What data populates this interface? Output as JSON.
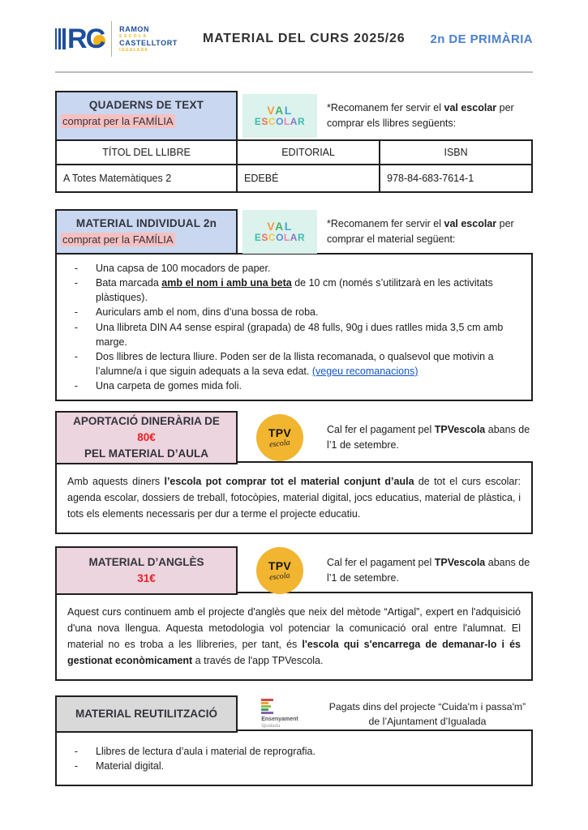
{
  "colors": {
    "accent_blue": "#4a7fd0",
    "logo_blue": "#1e4e9c",
    "logo_gold": "#f2b21a",
    "box_blue": "#c9d7f1",
    "box_pink": "#ecd5de",
    "box_gray": "#d9d9d9",
    "highlight_pink": "#f6c0c0",
    "price_red": "#ee1d23",
    "link_blue": "#1155cc",
    "tpv_yellow": "#f2b530",
    "val_bg": "#dcf2ec"
  },
  "header": {
    "logo": {
      "r": "R",
      "c": "C",
      "school_line1": "RAMON",
      "school_line2": "ESCOLA",
      "school_line3": "CASTELLTORT",
      "school_line4": "IGUALADA"
    },
    "title": "MATERIAL DEL CURS 2025/26",
    "grade": "2n DE PRIMÀRIA"
  },
  "val_logo": {
    "line1": [
      {
        "ch": "V",
        "c": "#f59b3d"
      },
      {
        "ch": "A",
        "c": "#4fb069"
      },
      {
        "ch": "L",
        "c": "#4aa3d8"
      }
    ],
    "line2": [
      {
        "ch": "E",
        "c": "#3cbcae"
      },
      {
        "ch": "S",
        "c": "#f07055"
      },
      {
        "ch": "C",
        "c": "#f3c63f"
      },
      {
        "ch": "O",
        "c": "#5a8fd8"
      },
      {
        "ch": "L",
        "c": "#ef7fb2"
      },
      {
        "ch": "A",
        "c": "#8f74c9"
      },
      {
        "ch": "R",
        "c": "#3cbcae"
      }
    ]
  },
  "tpv_logo": {
    "top": "TPV",
    "bottom": "escola"
  },
  "ensenyament_logo": {
    "name": "Ensenyament",
    "city": "Igualada",
    "bar_colors": [
      "#d94a4a",
      "#f0a132",
      "#8fbf4d",
      "#3f9e62",
      "#8a5fb0"
    ]
  },
  "section_quaderns": {
    "title": "QUADERNS DE TEXT",
    "subtitle": "comprat per la FAMÍLIA",
    "note": {
      "pre": "*Recomanem fer servir el ",
      "strong": "val escolar",
      "post": " per comprar els llibres següents:"
    },
    "table": {
      "headers": [
        "TÍTOL DEL LLIBRE",
        "EDITORIAL",
        "ISBN"
      ],
      "row": [
        "A Totes Matemàtiques 2",
        "EDEBÉ",
        "978-84-683-7614-1"
      ]
    }
  },
  "section_individual": {
    "title": "MATERIAL INDIVIDUAL 2n",
    "subtitle": "comprat per la FAMÍLIA",
    "note": {
      "pre": "*Recomanem fer servir el ",
      "strong": "val escolar",
      "post": " per comprar el material següent:"
    },
    "items": [
      {
        "pre": "Una capsa de 100 mocadors de paper.",
        "strong": "",
        "post": "",
        "link": ""
      },
      {
        "pre": "Bata marcada ",
        "strong": "amb el nom i amb una beta",
        "post": " de 10 cm (només s’utilitzarà en les activitats plàstiques).",
        "link": ""
      },
      {
        "pre": "Auriculars amb el nom, dins d’una bossa de roba.",
        "strong": "",
        "post": "",
        "link": ""
      },
      {
        "pre": "Una llibreta DIN A4 sense espiral (grapada) de 48 fulls, 90g i dues ratlles mida 3,5 cm amb marge.",
        "strong": "",
        "post": "",
        "link": ""
      },
      {
        "pre": "Dos llibres de lectura lliure. Poden ser de la llista recomanada, o qualsevol que motivin a l’alumne/a i que siguin adequats a la seva edat. ",
        "strong": "",
        "post": "",
        "link": "(vegeu recomanacions)"
      },
      {
        "pre": "Una carpeta de gomes mida foli.",
        "strong": "",
        "post": "",
        "link": ""
      }
    ]
  },
  "section_aportacio": {
    "title_line1": "APORTACIÓ DINERÀRIA DE",
    "amount": "80€",
    "title_line2": "PEL MATERIAL D’AULA",
    "note": {
      "pre": "Cal fer el pagament pel ",
      "strong": "TPVescola",
      "post": " abans de l’1 de setembre."
    },
    "body": {
      "pre": "Amb aquests diners ",
      "strong": "l’escola pot comprar tot el material conjunt d’aula",
      "post": " de tot el curs escolar: agenda escolar, dossiers de treball, fotocòpies, material digital, jocs educatius, material de plàstica, i tots els elements necessaris per dur a terme el projecte educatiu."
    }
  },
  "section_angles": {
    "title": "MATERIAL D’ANGLÈS",
    "amount": "31€",
    "note": {
      "pre": "Cal fer el pagament pel ",
      "strong": "TPVescola",
      "post": " abans de l’1 de setembre."
    },
    "body": {
      "pre": "Aquest curs continuem amb el projecte d'anglès que neix del mètode “Artigal”, expert en l'adquisició d'una nova llengua. Aquesta metodologia vol potenciar la comunicació oral entre l'alumnat. El material no es troba a les llibreries, per tant, és ",
      "strong": "l'escola qui s'encarrega de demanar-lo i és gestionat econòmicament",
      "post": " a través de l'app TPVescola."
    }
  },
  "section_reutilitzacio": {
    "title": "MATERIAL REUTILITZACIÓ",
    "note_line1": "Pagats dins del projecte “Cuida'm i passa'm”",
    "note_line2": "de l’Ajuntament d’Igualada",
    "items": [
      "Llibres de lectura d’aula i material de reprografia.",
      "Material digital."
    ]
  }
}
